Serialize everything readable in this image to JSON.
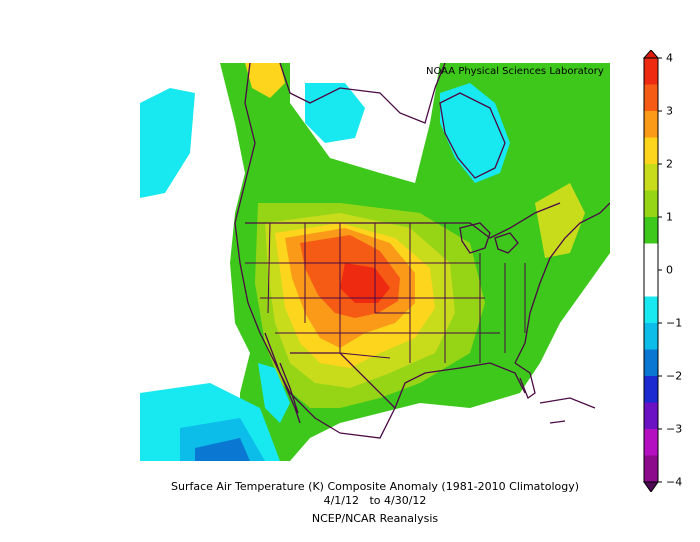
{
  "map": {
    "credit": "NOAA Physical Sciences Laboratory",
    "caption": {
      "line1": "Surface Air Temperature (K) Composite Anomaly (1981-2010 Climatology)",
      "line2": "4/1/12   to 4/30/12",
      "line3": "NCEP/NCAR Reanalysis"
    }
  },
  "colorbar": {
    "ticks": [
      {
        "label": "4",
        "value": 4
      },
      {
        "label": "3",
        "value": 3
      },
      {
        "label": "2",
        "value": 2
      },
      {
        "label": "1",
        "value": 1
      },
      {
        "label": "0",
        "value": 0
      },
      {
        "label": "−1",
        "value": -1
      },
      {
        "label": "−2",
        "value": -2
      },
      {
        "label": "−3",
        "value": -3
      },
      {
        "label": "−4",
        "value": -4
      }
    ],
    "bins": [
      {
        "from": 3.5,
        "to": 4.0,
        "color": "#ee2b10"
      },
      {
        "from": 3.0,
        "to": 3.5,
        "color": "#f55b14"
      },
      {
        "from": 2.5,
        "to": 3.0,
        "color": "#fa9a18"
      },
      {
        "from": 2.0,
        "to": 2.5,
        "color": "#fcd51c"
      },
      {
        "from": 1.5,
        "to": 2.0,
        "color": "#c8dc1c"
      },
      {
        "from": 1.0,
        "to": 1.5,
        "color": "#96d516"
      },
      {
        "from": 0.5,
        "to": 1.0,
        "color": "#3ec81c"
      },
      {
        "from": -0.5,
        "to": 0.5,
        "color": "#ffffff"
      },
      {
        "from": -1.0,
        "to": -0.5,
        "color": "#18e8f0"
      },
      {
        "from": -1.5,
        "to": -1.0,
        "color": "#0bbde8"
      },
      {
        "from": -2.0,
        "to": -1.5,
        "color": "#0a78d2"
      },
      {
        "from": -2.5,
        "to": -2.0,
        "color": "#1b2bd0"
      },
      {
        "from": -3.0,
        "to": -2.5,
        "color": "#6a12c4"
      },
      {
        "from": -3.5,
        "to": -3.0,
        "color": "#b50fc2"
      },
      {
        "from": -4.0,
        "to": -3.5,
        "color": "#8c0a8c"
      }
    ],
    "overflow_high_color": "#e01a0e",
    "overflow_low_color": "#4c0a50",
    "range": [
      -4,
      4
    ]
  },
  "colors": {
    "outline": "#4a0a44",
    "ocean": "#ffffff"
  }
}
